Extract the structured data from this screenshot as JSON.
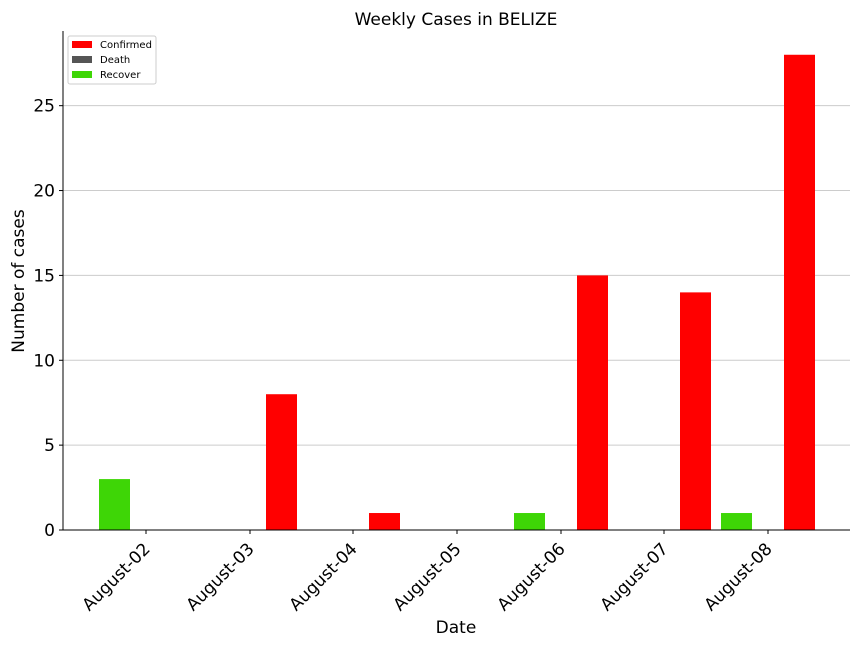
{
  "chart_data": {
    "type": "bar",
    "title": "Weekly Cases in BELIZE",
    "xlabel": "Date",
    "ylabel": "Number of cases",
    "categories": [
      "August-02",
      "August-03",
      "August-04",
      "August-05",
      "August-06",
      "August-07",
      "August-08"
    ],
    "series": [
      {
        "name": "Confirmed",
        "color": "#ff0000",
        "values": [
          0,
          8,
          1,
          0,
          15,
          14,
          28
        ]
      },
      {
        "name": "Death",
        "color": "#555555",
        "values": [
          0,
          0,
          0,
          0,
          0,
          0,
          0
        ]
      },
      {
        "name": "Recover",
        "color": "#3ed606",
        "values": [
          3,
          0,
          0,
          0,
          1,
          0,
          1
        ]
      }
    ],
    "ylim": [
      0,
      29.4
    ],
    "yticks": [
      0,
      5,
      10,
      15,
      20,
      25
    ],
    "grid": "y",
    "legend_position": "top-left"
  }
}
